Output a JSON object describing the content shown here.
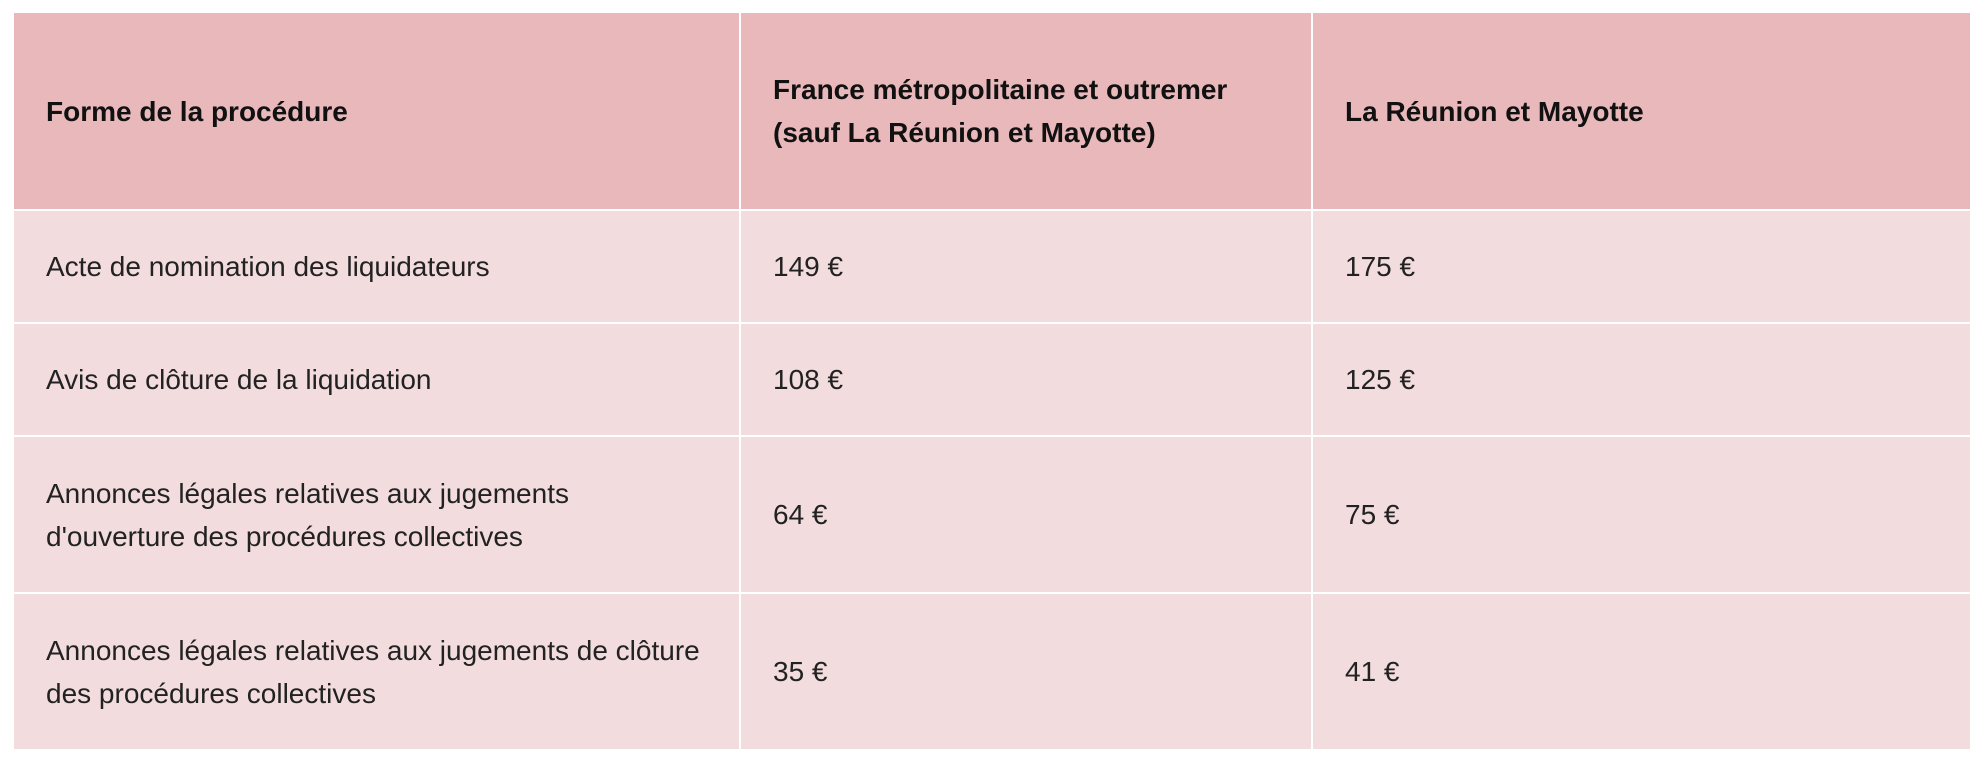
{
  "table": {
    "headers": [
      "Forme de la procédure",
      "France métropolitaine et outremer (sauf La Réunion et Mayotte)",
      "La Réunion et Mayotte"
    ],
    "rows": [
      [
        "Acte de nomination des liquidateurs",
        "149 €",
        "175 €"
      ],
      [
        "Avis de clôture de la liquidation",
        "108 €",
        "125 €"
      ],
      [
        "Annonces légales relatives aux jugements d'ouverture des procédures collectives",
        "64 €",
        "75 €"
      ],
      [
        "Annonces légales relatives aux jugements de clôture des procédures collectives",
        "35 €",
        "41 €"
      ]
    ]
  },
  "colors": {
    "header_bg": "#e8b8bb",
    "row_bg": "#f2dcdd",
    "border": "#ffffff"
  }
}
